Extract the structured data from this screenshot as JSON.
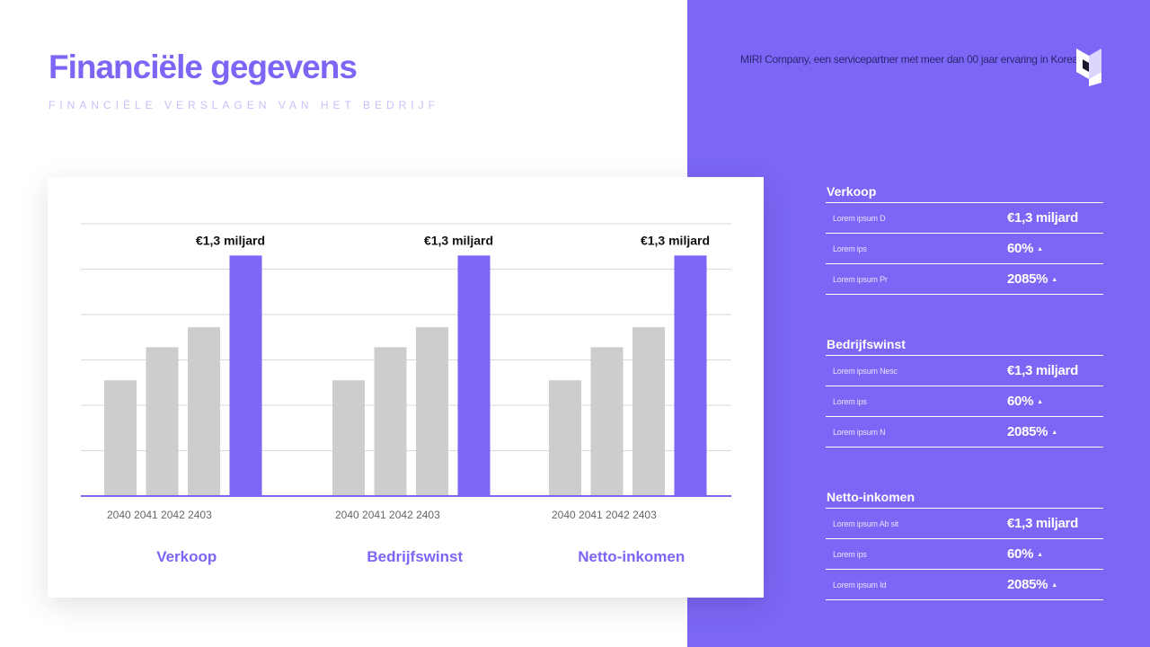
{
  "header": {
    "title": "Financiële gegevens",
    "subtitle": "FINANCIËLE VERSLAGEN VAN HET BEDRIJF",
    "company_text": "MIRI Company, een servicepartner met meer dan 00 jaar ervaring in Korea"
  },
  "colors": {
    "accent": "#7B66F5",
    "bar_gray": "#CDCDCF",
    "grid": "#DADADA"
  },
  "chart_data": {
    "type": "bar",
    "title": "",
    "xlabel": "",
    "ylabel": "",
    "ylim": [
      0,
      6
    ],
    "grid": true,
    "groups": [
      {
        "name": "Verkoop",
        "categories": [
          "2040",
          "2041",
          "2042",
          "2403"
        ],
        "values": [
          2.55,
          3.28,
          3.72,
          5.3
        ],
        "highlight_label": "€1,3 miljard"
      },
      {
        "name": "Bedrijfswinst",
        "categories": [
          "2040",
          "2041",
          "2042",
          "2403"
        ],
        "values": [
          2.55,
          3.28,
          3.72,
          5.3
        ],
        "highlight_label": "€1,3 miljard"
      },
      {
        "name": "Netto-inkomen",
        "categories": [
          "2040",
          "2041",
          "2042",
          "2403"
        ],
        "values": [
          2.55,
          3.28,
          3.72,
          5.3
        ],
        "highlight_label": "€1,3 miljard"
      }
    ]
  },
  "sections": [
    {
      "title": "Verkoop",
      "rows": [
        {
          "label": "Lorem ipsum D",
          "value": "€1,3 miljard",
          "arrow": ""
        },
        {
          "label": "Lorem ips",
          "value": "60%",
          "arrow": "▲"
        },
        {
          "label": "Lorem ipsum Pr",
          "value": "2085%",
          "arrow": "▲"
        }
      ]
    },
    {
      "title": "Bedrijfswinst",
      "rows": [
        {
          "label": "Lorem ipsum Nesc",
          "value": "€1,3 miljard",
          "arrow": ""
        },
        {
          "label": "Lorem ips",
          "value": "60%",
          "arrow": "▲"
        },
        {
          "label": "Lorem ipsum N",
          "value": "2085%",
          "arrow": "▲"
        }
      ]
    },
    {
      "title": "Netto-inkomen",
      "rows": [
        {
          "label": "Lorem ipsum Ab sit",
          "value": "€1,3 miljard",
          "arrow": ""
        },
        {
          "label": "Lorem ips",
          "value": "60%",
          "arrow": "▲"
        },
        {
          "label": "Lorem ipsum Id",
          "value": "2085%",
          "arrow": "▲"
        }
      ]
    }
  ]
}
